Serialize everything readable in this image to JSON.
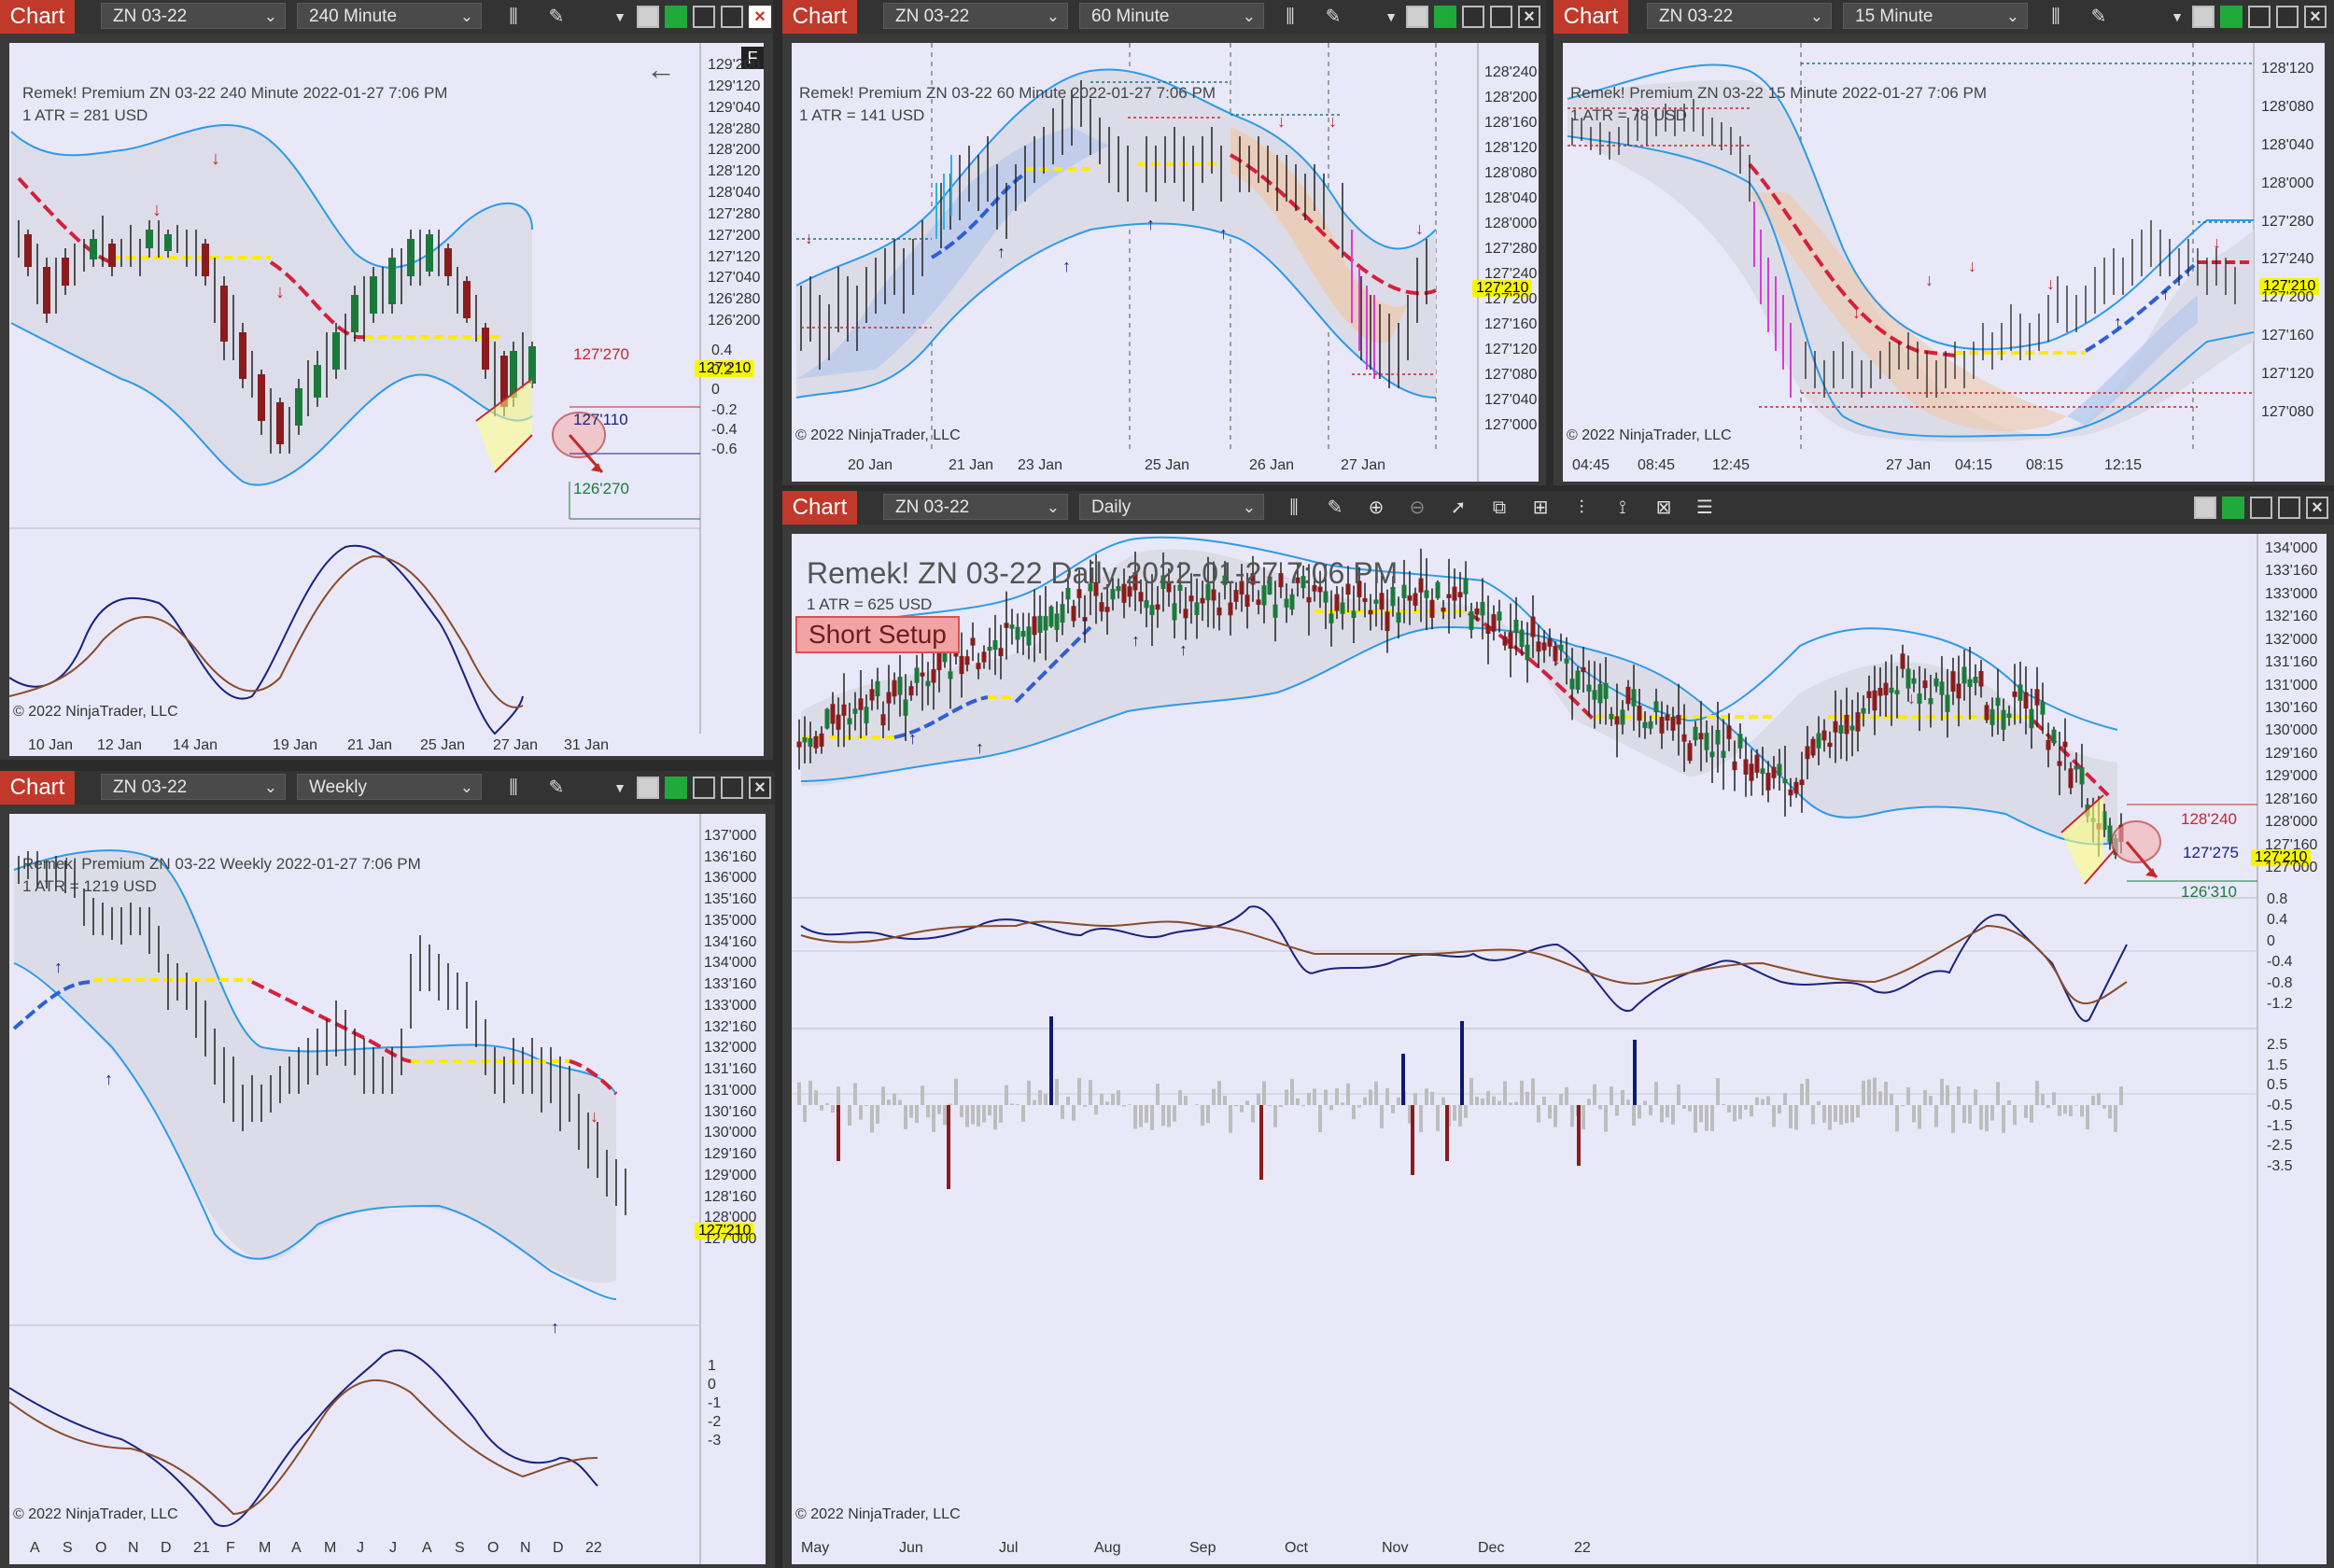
{
  "common": {
    "chart_label": "Chart",
    "instrument": "ZN 03-22",
    "copyright": "© 2022 NinjaTrader, LLC",
    "current_price": "127'210"
  },
  "win240": {
    "timeframe": "240 Minute",
    "info_line": "Remek!  Premium  ZN 03-22  240 Minute  2022-01-27 7:06 PM",
    "atr": "1 ATR = 281 USD",
    "f_button": "F",
    "price_ticks": [
      "129'200",
      "129'120",
      "129'040",
      "128'280",
      "128'200",
      "128'120",
      "128'040",
      "127'280",
      "127'200",
      "127'120",
      "127'040",
      "126'280",
      "126'200"
    ],
    "osc_ticks": [
      "0.4",
      "0.2",
      "0",
      "-0.2",
      "-0.4",
      "-0.6"
    ],
    "date_ticks": [
      "10 Jan",
      "12 Jan",
      "14 Jan",
      "19 Jan",
      "21 Jan",
      "25 Jan",
      "27 Jan",
      "31 Jan"
    ],
    "levels": {
      "upper": "127'270",
      "mid": "127'110",
      "lower": "126'270"
    }
  },
  "win60": {
    "timeframe": "60 Minute",
    "info_line": "Remek!  Premium  ZN 03-22  60 Minute  2022-01-27 7:06 PM",
    "atr": "1 ATR = 141 USD",
    "price_ticks": [
      "128'240",
      "128'200",
      "128'160",
      "128'120",
      "128'080",
      "128'040",
      "128'000",
      "127'280",
      "127'240",
      "127'200",
      "127'160",
      "127'120",
      "127'080",
      "127'040",
      "127'000"
    ],
    "date_ticks": [
      "20 Jan",
      "21 Jan",
      "23 Jan",
      "25 Jan",
      "26 Jan",
      "27 Jan"
    ]
  },
  "win15": {
    "timeframe": "15 Minute",
    "info_line": "Remek!  Premium  ZN 03-22  15 Minute  2022-01-27 7:06 PM",
    "atr": "1 ATR = 78 USD",
    "price_ticks": [
      "128'120",
      "128'080",
      "128'040",
      "128'000",
      "127'280",
      "127'240",
      "127'200",
      "127'160",
      "127'120",
      "127'080"
    ],
    "date_ticks": [
      "04:45",
      "08:45",
      "12:45",
      "27 Jan",
      "04:15",
      "08:15",
      "12:15"
    ]
  },
  "winWeekly": {
    "timeframe": "Weekly",
    "info_line": "Remek!  Premium  ZN 03-22  Weekly  2022-01-27 7:06 PM",
    "atr": "1 ATR = 1219 USD",
    "price_ticks": [
      "137'000",
      "136'160",
      "136'000",
      "135'160",
      "135'000",
      "134'160",
      "134'000",
      "133'160",
      "133'000",
      "132'160",
      "132'000",
      "131'160",
      "131'000",
      "130'160",
      "130'000",
      "129'160",
      "129'000",
      "128'160",
      "128'000",
      "127'000"
    ],
    "osc_ticks": [
      "1",
      "0",
      "-1",
      "-2",
      "-3"
    ],
    "date_ticks": [
      "A",
      "S",
      "O",
      "N",
      "D",
      "21",
      "F",
      "M",
      "A",
      "M",
      "J",
      "J",
      "A",
      "S",
      "O",
      "N",
      "D",
      "22"
    ]
  },
  "winDaily": {
    "timeframe": "Daily",
    "title": "Remek!  ZN 03-22  Daily  2022-01-27 7:06 PM",
    "atr": "1 ATR = 625 USD",
    "setup_badge": "Short Setup",
    "price_ticks": [
      "134'000",
      "133'160",
      "133'000",
      "132'160",
      "132'000",
      "131'160",
      "131'000",
      "130'160",
      "130'000",
      "129'160",
      "129'000",
      "128'160",
      "128'000",
      "127'160",
      "127'000"
    ],
    "osc_ticks": [
      "0.8",
      "0.4",
      "0",
      "-0.4",
      "-0.8",
      "-1.2"
    ],
    "hist_ticks": [
      "2.5",
      "1.5",
      "0.5",
      "-0.5",
      "-1.5",
      "-2.5",
      "-3.5"
    ],
    "date_ticks": [
      "May",
      "Jun",
      "Jul",
      "Aug",
      "Sep",
      "Oct",
      "Nov",
      "Dec",
      "22"
    ],
    "levels": {
      "upper": "128'240",
      "mid": "127'275",
      "lower": "126'310"
    }
  },
  "colors": {
    "red_tab": "#c0392b",
    "plot_bg": "#e8e8f8",
    "price_tag": "#f6f600",
    "band_line": "#2d9be8",
    "trend_down": "#d61f3a",
    "trend_up": "#2f5fd6"
  },
  "icons": [
    "bar-type-icon",
    "draw-pencil-icon",
    "zoom-in-icon",
    "zoom-out-icon",
    "pointer-icon",
    "data-box-icon",
    "properties-icon",
    "indicators-icon",
    "strategies-icon",
    "templates-icon",
    "list-icon",
    "back-arrow-icon"
  ]
}
